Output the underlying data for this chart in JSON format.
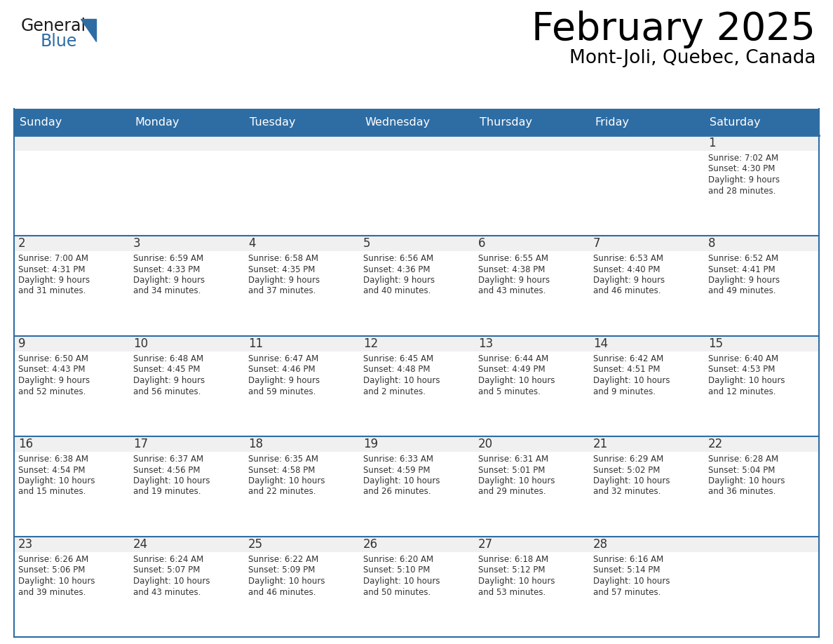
{
  "title": "February 2025",
  "subtitle": "Mont-Joli, Quebec, Canada",
  "header_bg": "#2E6DA4",
  "header_text_color": "#FFFFFF",
  "cell_bg_gray": "#F0F0F0",
  "cell_bg_white": "#FFFFFF",
  "separator_color": "#2E6DA4",
  "text_color": "#333333",
  "day_headers": [
    "Sunday",
    "Monday",
    "Tuesday",
    "Wednesday",
    "Thursday",
    "Friday",
    "Saturday"
  ],
  "blue_color": "#2E6DA4",
  "days": [
    {
      "day": 1,
      "col": 6,
      "row": 0,
      "sunrise": "7:02 AM",
      "sunset": "4:30 PM",
      "daylight": "9 hours and 28 minutes."
    },
    {
      "day": 2,
      "col": 0,
      "row": 1,
      "sunrise": "7:00 AM",
      "sunset": "4:31 PM",
      "daylight": "9 hours and 31 minutes."
    },
    {
      "day": 3,
      "col": 1,
      "row": 1,
      "sunrise": "6:59 AM",
      "sunset": "4:33 PM",
      "daylight": "9 hours and 34 minutes."
    },
    {
      "day": 4,
      "col": 2,
      "row": 1,
      "sunrise": "6:58 AM",
      "sunset": "4:35 PM",
      "daylight": "9 hours and 37 minutes."
    },
    {
      "day": 5,
      "col": 3,
      "row": 1,
      "sunrise": "6:56 AM",
      "sunset": "4:36 PM",
      "daylight": "9 hours and 40 minutes."
    },
    {
      "day": 6,
      "col": 4,
      "row": 1,
      "sunrise": "6:55 AM",
      "sunset": "4:38 PM",
      "daylight": "9 hours and 43 minutes."
    },
    {
      "day": 7,
      "col": 5,
      "row": 1,
      "sunrise": "6:53 AM",
      "sunset": "4:40 PM",
      "daylight": "9 hours and 46 minutes."
    },
    {
      "day": 8,
      "col": 6,
      "row": 1,
      "sunrise": "6:52 AM",
      "sunset": "4:41 PM",
      "daylight": "9 hours and 49 minutes."
    },
    {
      "day": 9,
      "col": 0,
      "row": 2,
      "sunrise": "6:50 AM",
      "sunset": "4:43 PM",
      "daylight": "9 hours and 52 minutes."
    },
    {
      "day": 10,
      "col": 1,
      "row": 2,
      "sunrise": "6:48 AM",
      "sunset": "4:45 PM",
      "daylight": "9 hours and 56 minutes."
    },
    {
      "day": 11,
      "col": 2,
      "row": 2,
      "sunrise": "6:47 AM",
      "sunset": "4:46 PM",
      "daylight": "9 hours and 59 minutes."
    },
    {
      "day": 12,
      "col": 3,
      "row": 2,
      "sunrise": "6:45 AM",
      "sunset": "4:48 PM",
      "daylight": "10 hours and 2 minutes."
    },
    {
      "day": 13,
      "col": 4,
      "row": 2,
      "sunrise": "6:44 AM",
      "sunset": "4:49 PM",
      "daylight": "10 hours and 5 minutes."
    },
    {
      "day": 14,
      "col": 5,
      "row": 2,
      "sunrise": "6:42 AM",
      "sunset": "4:51 PM",
      "daylight": "10 hours and 9 minutes."
    },
    {
      "day": 15,
      "col": 6,
      "row": 2,
      "sunrise": "6:40 AM",
      "sunset": "4:53 PM",
      "daylight": "10 hours and 12 minutes."
    },
    {
      "day": 16,
      "col": 0,
      "row": 3,
      "sunrise": "6:38 AM",
      "sunset": "4:54 PM",
      "daylight": "10 hours and 15 minutes."
    },
    {
      "day": 17,
      "col": 1,
      "row": 3,
      "sunrise": "6:37 AM",
      "sunset": "4:56 PM",
      "daylight": "10 hours and 19 minutes."
    },
    {
      "day": 18,
      "col": 2,
      "row": 3,
      "sunrise": "6:35 AM",
      "sunset": "4:58 PM",
      "daylight": "10 hours and 22 minutes."
    },
    {
      "day": 19,
      "col": 3,
      "row": 3,
      "sunrise": "6:33 AM",
      "sunset": "4:59 PM",
      "daylight": "10 hours and 26 minutes."
    },
    {
      "day": 20,
      "col": 4,
      "row": 3,
      "sunrise": "6:31 AM",
      "sunset": "5:01 PM",
      "daylight": "10 hours and 29 minutes."
    },
    {
      "day": 21,
      "col": 5,
      "row": 3,
      "sunrise": "6:29 AM",
      "sunset": "5:02 PM",
      "daylight": "10 hours and 32 minutes."
    },
    {
      "day": 22,
      "col": 6,
      "row": 3,
      "sunrise": "6:28 AM",
      "sunset": "5:04 PM",
      "daylight": "10 hours and 36 minutes."
    },
    {
      "day": 23,
      "col": 0,
      "row": 4,
      "sunrise": "6:26 AM",
      "sunset": "5:06 PM",
      "daylight": "10 hours and 39 minutes."
    },
    {
      "day": 24,
      "col": 1,
      "row": 4,
      "sunrise": "6:24 AM",
      "sunset": "5:07 PM",
      "daylight": "10 hours and 43 minutes."
    },
    {
      "day": 25,
      "col": 2,
      "row": 4,
      "sunrise": "6:22 AM",
      "sunset": "5:09 PM",
      "daylight": "10 hours and 46 minutes."
    },
    {
      "day": 26,
      "col": 3,
      "row": 4,
      "sunrise": "6:20 AM",
      "sunset": "5:10 PM",
      "daylight": "10 hours and 50 minutes."
    },
    {
      "day": 27,
      "col": 4,
      "row": 4,
      "sunrise": "6:18 AM",
      "sunset": "5:12 PM",
      "daylight": "10 hours and 53 minutes."
    },
    {
      "day": 28,
      "col": 5,
      "row": 4,
      "sunrise": "6:16 AM",
      "sunset": "5:14 PM",
      "daylight": "10 hours and 57 minutes."
    }
  ],
  "num_rows": 5,
  "figwidth": 11.88,
  "figheight": 9.18,
  "dpi": 100
}
